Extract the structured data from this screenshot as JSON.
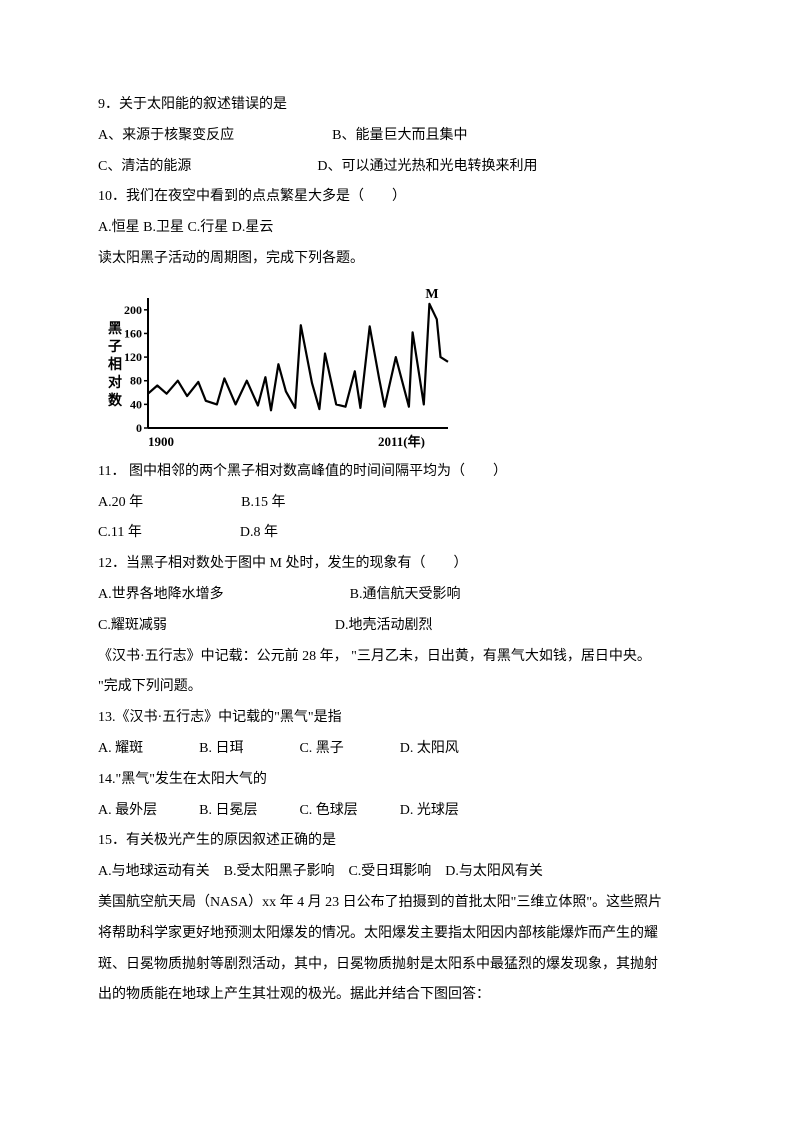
{
  "q9": {
    "stem": "9．关于太阳能的叙述错误的是",
    "optA": "A、来源于核聚变反应",
    "optB": "B、能量巨大而且集中",
    "optC": "C、清洁的能源",
    "optD": "D、可以通过光热和光电转换来利用"
  },
  "q10": {
    "stem": "10．我们在夜空中看到的点点繁星大多是（　　）",
    "opts": "A.恒星 B.卫星 C.行星 D.星云"
  },
  "intro1": "读太阳黑子活动的周期图，完成下列各题。",
  "chart": {
    "ylabels": [
      "200",
      "160",
      "120",
      "80",
      "40",
      "0"
    ],
    "xlabels": [
      "1900",
      "2011(年)"
    ],
    "ytitle": "黑子相对数",
    "peak_label": "M",
    "axis_color": "#000000",
    "series_color": "#000000",
    "background": "#ffffff",
    "series": [
      [
        0,
        58
      ],
      [
        10,
        72
      ],
      [
        20,
        58
      ],
      [
        32,
        80
      ],
      [
        42,
        54
      ],
      [
        54,
        78
      ],
      [
        62,
        46
      ],
      [
        74,
        40
      ],
      [
        82,
        84
      ],
      [
        94,
        40
      ],
      [
        106,
        80
      ],
      [
        118,
        38
      ],
      [
        126,
        86
      ],
      [
        132,
        30
      ],
      [
        140,
        108
      ],
      [
        148,
        62
      ],
      [
        158,
        34
      ],
      [
        164,
        174
      ],
      [
        176,
        76
      ],
      [
        184,
        32
      ],
      [
        190,
        126
      ],
      [
        202,
        40
      ],
      [
        212,
        36
      ],
      [
        222,
        96
      ],
      [
        228,
        34
      ],
      [
        238,
        172
      ],
      [
        248,
        84
      ],
      [
        254,
        36
      ],
      [
        266,
        120
      ],
      [
        280,
        36
      ],
      [
        284,
        162
      ],
      [
        296,
        40
      ],
      [
        302,
        210
      ],
      [
        310,
        184
      ],
      [
        314,
        120
      ],
      [
        322,
        112
      ]
    ]
  },
  "q11": {
    "stem": "11． 图中相邻的两个黑子相对数高峰值的时间间隔平均为（　　）",
    "optA": "A.20 年",
    "optB": "B.15 年",
    "optC": "C.11 年",
    "optD": "D.8 年"
  },
  "q12": {
    "stem": "12．当黑子相对数处于图中 M 处时，发生的现象有（　　）",
    "optA": "A.世界各地降水增多",
    "optB": "B.通信航天受影响",
    "optC": "C.耀斑减弱",
    "optD": "D.地壳活动剧烈"
  },
  "intro2a": "《汉书·五行志》中记载：公元前 28 年， \"三月乙未，日出黄，有黑气大如钱，居日中央。",
  "intro2b": "\"完成下列问题。",
  "q13": {
    "stem": "13.《汉书·五行志》中记载的\"黑气\"是指",
    "opts": "A. 耀斑　　　　B. 日珥　　　　C. 黑子　　　　D. 太阳风"
  },
  "q14": {
    "stem": "14.\"黑气\"发生在太阳大气的",
    "opts": "A. 最外层　　　B. 日冕层　　　C. 色球层　　　D. 光球层"
  },
  "q15": {
    "stem": "15．有关极光产生的原因叙述正确的是",
    "opts": "A.与地球运动有关　B.受太阳黑子影响　C.受日珥影响　D.与太阳风有关"
  },
  "intro3a": "美国航空航天局（NASA）xx 年 4 月 23 日公布了拍摄到的首批太阳\"三维立体照\"。这些照片",
  "intro3b": "将帮助科学家更好地预测太阳爆发的情况。太阳爆发主要指太阳因内部核能爆炸而产生的耀",
  "intro3c": "斑、日冕物质抛射等剧烈活动，其中，日冕物质抛射是太阳系中最猛烈的爆发现象，其抛射",
  "intro3d": "出的物质能在地球上产生其壮观的极光。据此并结合下图回答："
}
